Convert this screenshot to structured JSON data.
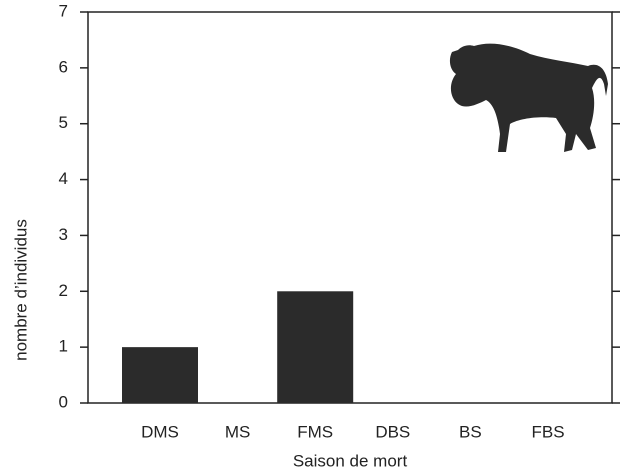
{
  "chart_data": {
    "type": "bar",
    "categories": [
      "DMS",
      "MS",
      "FMS",
      "DBS",
      "BS",
      "FBS"
    ],
    "values": [
      1,
      0,
      2,
      0,
      0,
      0
    ],
    "color": "#2b2b2b",
    "xlabel": "Saison de mort",
    "ylabel": "nombre d’individus",
    "ylim": [
      0,
      7
    ],
    "yticks": [
      0,
      1,
      2,
      3,
      4,
      5,
      6,
      7
    ],
    "grid": false
  }
}
